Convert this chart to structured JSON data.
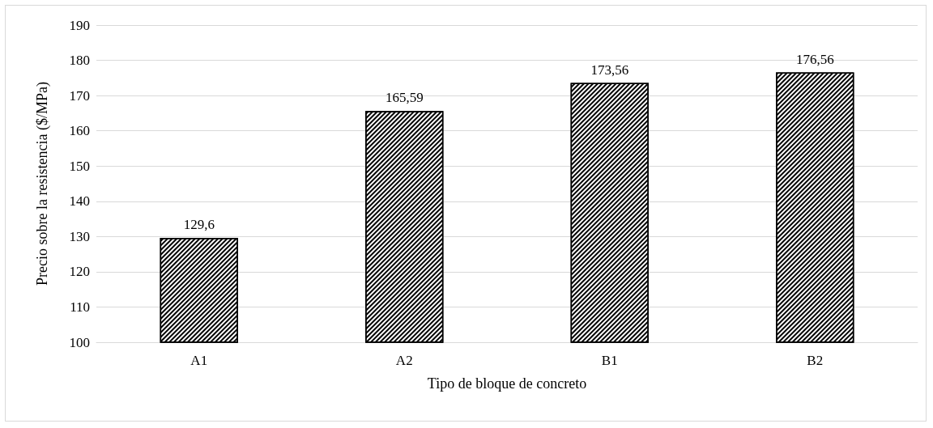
{
  "chart_data": {
    "type": "bar",
    "xlabel": "Tipo de bloque de concreto",
    "ylabel": "Precio sobre la resistencia ($/MPa)",
    "categories": [
      "A1",
      "A2",
      "B1",
      "B2"
    ],
    "values": [
      129.6,
      165.59,
      173.56,
      176.56
    ],
    "value_labels": [
      "129,6",
      "165,59",
      "173,56",
      "176,56"
    ],
    "color": "#000000",
    "ylim": [
      100,
      190
    ],
    "yticks": [
      100,
      110,
      120,
      130,
      140,
      150,
      160,
      170,
      180,
      190
    ],
    "grid": "y"
  }
}
